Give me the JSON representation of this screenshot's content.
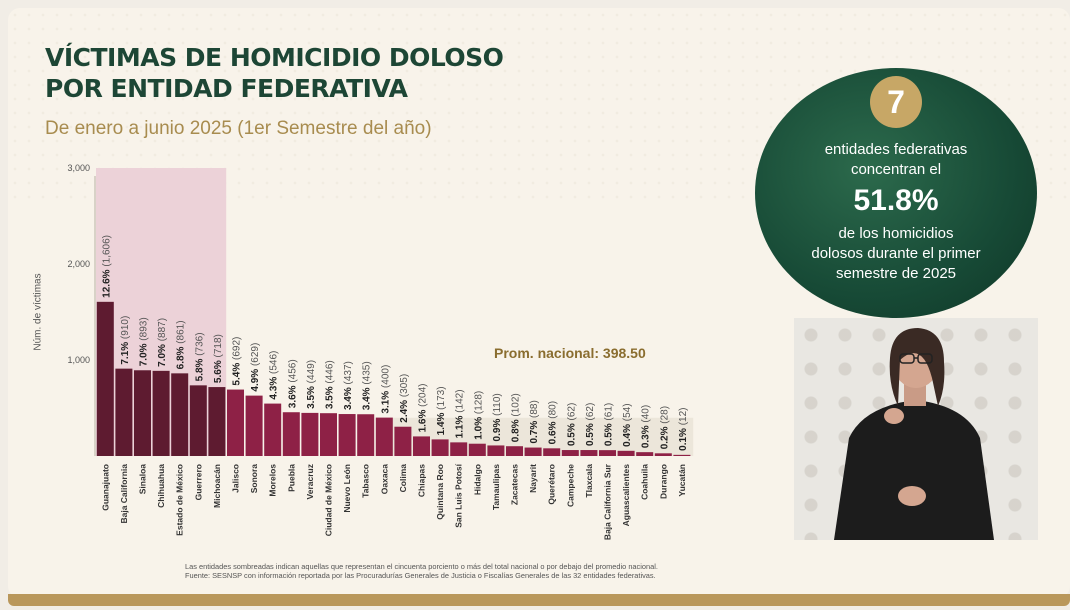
{
  "title_line1": "VÍCTIMAS DE HOMICIDIO DOLOSO",
  "title_line2": "POR ENTIDAD FEDERATIVA",
  "subtitle": "De enero a junio 2025 (1er Semestre del año)",
  "badge": {
    "number": "7",
    "line1": "entidades federativas",
    "line2": "concentran el",
    "pct": "51.8%",
    "line3": "de los homicidios",
    "line4": "dolosos durante el primer",
    "line5": "semestre de 2025"
  },
  "average_label": "Prom. nacional: 398.50",
  "footnote_line1": "Las entidades sombreadas indican aquellas que representan el cincuenta porciento o más del total nacional o por debajo del promedio nacional.",
  "footnote_line2": "Fuente: SESNSP con información reportada por las Procuradurías Generales de Justicia o Fiscalías Generales de las 32 entidades federativas.",
  "colors": {
    "highlight_bar": "#5e1b30",
    "regular_bar": "#8e2146",
    "highlight_bg": "#ecd2d8",
    "below_avg_bg": "#ece6da",
    "title": "#1d4635",
    "gold": "#b9975b"
  },
  "chart_data": {
    "type": "bar",
    "ylabel": "Núm. de víctimas",
    "ylim": [
      0,
      3000
    ],
    "yticks": [
      "3,000",
      "2,000",
      "1,000"
    ],
    "ytick_values": [
      3000,
      2000,
      1000
    ],
    "average": 398.5,
    "highlighted_count": 7,
    "categories": [
      "Guanajuato",
      "Baja California",
      "Sinaloa",
      "Chihuahua",
      "Estado de México",
      "Guerrero",
      "Michoacán",
      "Jalisco",
      "Sonora",
      "Morelos",
      "Puebla",
      "Veracruz",
      "Ciudad de México",
      "Nuevo León",
      "Tabasco",
      "Oaxaca",
      "Colima",
      "Chiapas",
      "Quintana Roo",
      "San Luis Potosí",
      "Hidalgo",
      "Tamaulipas",
      "Zacatecas",
      "Nayarit",
      "Querétaro",
      "Campeche",
      "Tlaxcala",
      "Baja California Sur",
      "Aguascalientes",
      "Coahuila",
      "Durango",
      "Yucatán"
    ],
    "values": [
      1606,
      910,
      893,
      887,
      861,
      736,
      718,
      692,
      629,
      546,
      456,
      449,
      446,
      437,
      435,
      400,
      305,
      204,
      173,
      142,
      128,
      110,
      102,
      88,
      80,
      62,
      62,
      61,
      54,
      40,
      28,
      12
    ],
    "percent_labels": [
      "12.6%",
      "7.1%",
      "7.0%",
      "7.0%",
      "6.8%",
      "5.8%",
      "5.6%",
      "5.4%",
      "4.9%",
      "4.3%",
      "3.6%",
      "3.5%",
      "3.5%",
      "3.4%",
      "3.4%",
      "3.1%",
      "2.4%",
      "1.6%",
      "1.4%",
      "1.1%",
      "1.0%",
      "0.9%",
      "0.8%",
      "0.7%",
      "0.6%",
      "0.5%",
      "0.5%",
      "0.5%",
      "0.4%",
      "0.3%",
      "0.2%",
      "0.1%"
    ],
    "value_labels": [
      "(1,606)",
      "(910)",
      "(893)",
      "(887)",
      "(861)",
      "(736)",
      "(718)",
      "(692)",
      "(629)",
      "(546)",
      "(456)",
      "(449)",
      "(446)",
      "(437)",
      "(435)",
      "(400)",
      "(305)",
      "(204)",
      "(173)",
      "(142)",
      "(128)",
      "(110)",
      "(102)",
      "(88)",
      "(80)",
      "(62)",
      "(62)",
      "(61)",
      "(54)",
      "(40)",
      "(28)",
      "(12)"
    ]
  }
}
